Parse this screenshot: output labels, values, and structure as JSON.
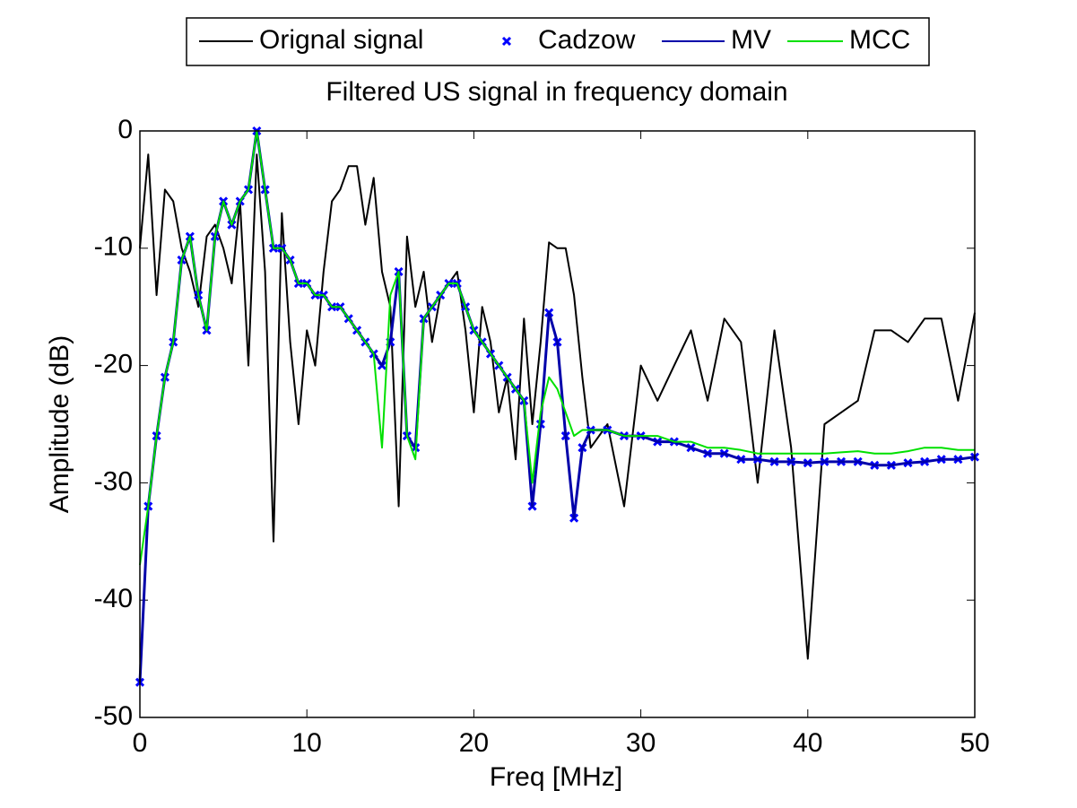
{
  "chart_data": {
    "type": "line",
    "title": "Filtered US signal in frequency domain",
    "xlabel": "Freq [MHz]",
    "ylabel": "Amplitude (dB)",
    "legend": "top",
    "x": [
      0,
      0.5,
      1,
      1.5,
      2,
      2.5,
      3,
      3.5,
      4,
      4.5,
      5,
      5.5,
      6,
      6.5,
      7,
      7.5,
      8,
      8.5,
      9,
      9.5,
      10,
      10.5,
      11,
      11.5,
      12,
      12.5,
      13,
      13.5,
      14,
      14.5,
      15,
      15.5,
      16,
      16.5,
      17,
      17.5,
      18,
      18.5,
      19,
      19.5,
      20,
      20.5,
      21,
      21.5,
      22,
      22.5,
      23,
      23.5,
      24,
      24.5,
      25,
      25.5,
      26,
      26.5,
      27,
      28,
      29,
      30,
      31,
      32,
      33,
      34,
      35,
      36,
      37,
      38,
      39,
      40,
      41,
      42,
      43,
      44,
      45,
      46,
      47,
      48,
      49,
      50
    ],
    "series": [
      {
        "name": "Orignal signal",
        "color": "#000000",
        "values": [
          -10,
          -2,
          -14,
          -5,
          -6,
          -10,
          -12,
          -15,
          -9,
          -8,
          -10,
          -13,
          -6,
          -20,
          -2,
          -12,
          -35,
          -7,
          -18,
          -25,
          -17,
          -20,
          -12,
          -6,
          -5,
          -3,
          -3,
          -8,
          -4,
          -12,
          -15,
          -32,
          -9,
          -15,
          -12,
          -18,
          -14,
          -13,
          -12,
          -17,
          -24,
          -15,
          -18,
          -24,
          -21,
          -28,
          -16,
          -25,
          -18,
          -9.5,
          -10,
          -10,
          -14,
          -21,
          -27,
          -25,
          -32,
          -20,
          -23,
          -20,
          -17,
          -23,
          -16,
          -18,
          -30,
          -17,
          -27,
          -45,
          -25,
          -24,
          -23,
          -17,
          -17,
          -18,
          -16,
          -16,
          -23,
          -15.5
        ]
      },
      {
        "name": "Cadzow",
        "color": "#0000ff",
        "marker": "x",
        "values": [
          -47,
          -32,
          -26,
          -21,
          -18,
          -11,
          -9,
          -14,
          -17,
          -9,
          -6,
          -8,
          -6,
          -5,
          0,
          -5,
          -10,
          -10,
          -11,
          -13,
          -13,
          -14,
          -14,
          -15,
          -15,
          -16,
          -17,
          -18,
          -19,
          -20,
          -18,
          -12,
          -26,
          -27,
          -16,
          -15,
          -14,
          -13,
          -13,
          -15,
          -17,
          -18,
          -19,
          -20,
          -21,
          -22,
          -23,
          -32,
          -25,
          -15.5,
          -18,
          -26,
          -33,
          -27,
          -25.5,
          -25.5,
          -26,
          -26,
          -26.5,
          -26.5,
          -27,
          -27.5,
          -27.5,
          -28,
          -28,
          -28.2,
          -28.2,
          -28.3,
          -28.2,
          -28.2,
          -28.2,
          -28.5,
          -28.5,
          -28.3,
          -28.2,
          -28,
          -28,
          -27.8
        ]
      },
      {
        "name": "MV",
        "color": "#0000aa",
        "values": [
          -47,
          -32,
          -26,
          -21,
          -18,
          -11,
          -9,
          -14,
          -17,
          -9,
          -6,
          -8,
          -6,
          -5,
          0,
          -5,
          -10,
          -10,
          -11,
          -13,
          -13,
          -14,
          -14,
          -15,
          -15,
          -16,
          -17,
          -18,
          -19,
          -20,
          -18,
          -12,
          -26,
          -27,
          -16,
          -15,
          -14,
          -13,
          -13,
          -15,
          -17,
          -18,
          -19,
          -20,
          -21,
          -22,
          -23,
          -32,
          -25,
          -15.5,
          -18,
          -26,
          -33,
          -27,
          -25.5,
          -25.5,
          -26,
          -26,
          -26.5,
          -26.5,
          -27,
          -27.5,
          -27.5,
          -28,
          -28,
          -28.2,
          -28.2,
          -28.3,
          -28.2,
          -28.2,
          -28.2,
          -28.5,
          -28.5,
          -28.3,
          -28.2,
          -28,
          -28,
          -27.8
        ]
      },
      {
        "name": "MCC",
        "color": "#00e000",
        "values": [
          -37,
          -32,
          -26,
          -21,
          -18,
          -11,
          -9,
          -14,
          -17,
          -9,
          -6,
          -8,
          -6,
          -5,
          0,
          -5,
          -10,
          -10,
          -11,
          -13,
          -13,
          -14,
          -14,
          -15,
          -15,
          -16,
          -17,
          -18,
          -19,
          -27,
          -14,
          -12,
          -26,
          -28,
          -16,
          -15,
          -14,
          -13,
          -13,
          -15,
          -17,
          -18,
          -19,
          -20,
          -21,
          -22,
          -23,
          -30,
          -24,
          -21,
          -22,
          -24,
          -26,
          -25.5,
          -25.5,
          -25.5,
          -26,
          -26,
          -26,
          -26.5,
          -26.5,
          -27,
          -27,
          -27.2,
          -27.5,
          -27.5,
          -27.5,
          -27.5,
          -27.5,
          -27.4,
          -27.3,
          -27.5,
          -27.5,
          -27.3,
          -27,
          -27,
          -27.2,
          -27.2
        ]
      }
    ],
    "xlim": [
      0,
      50
    ],
    "xticks": [
      0,
      10,
      20,
      30,
      40,
      50
    ],
    "ylim": [
      -50,
      0
    ],
    "yticks": [
      -50,
      -40,
      -30,
      -20,
      -10,
      0
    ]
  }
}
